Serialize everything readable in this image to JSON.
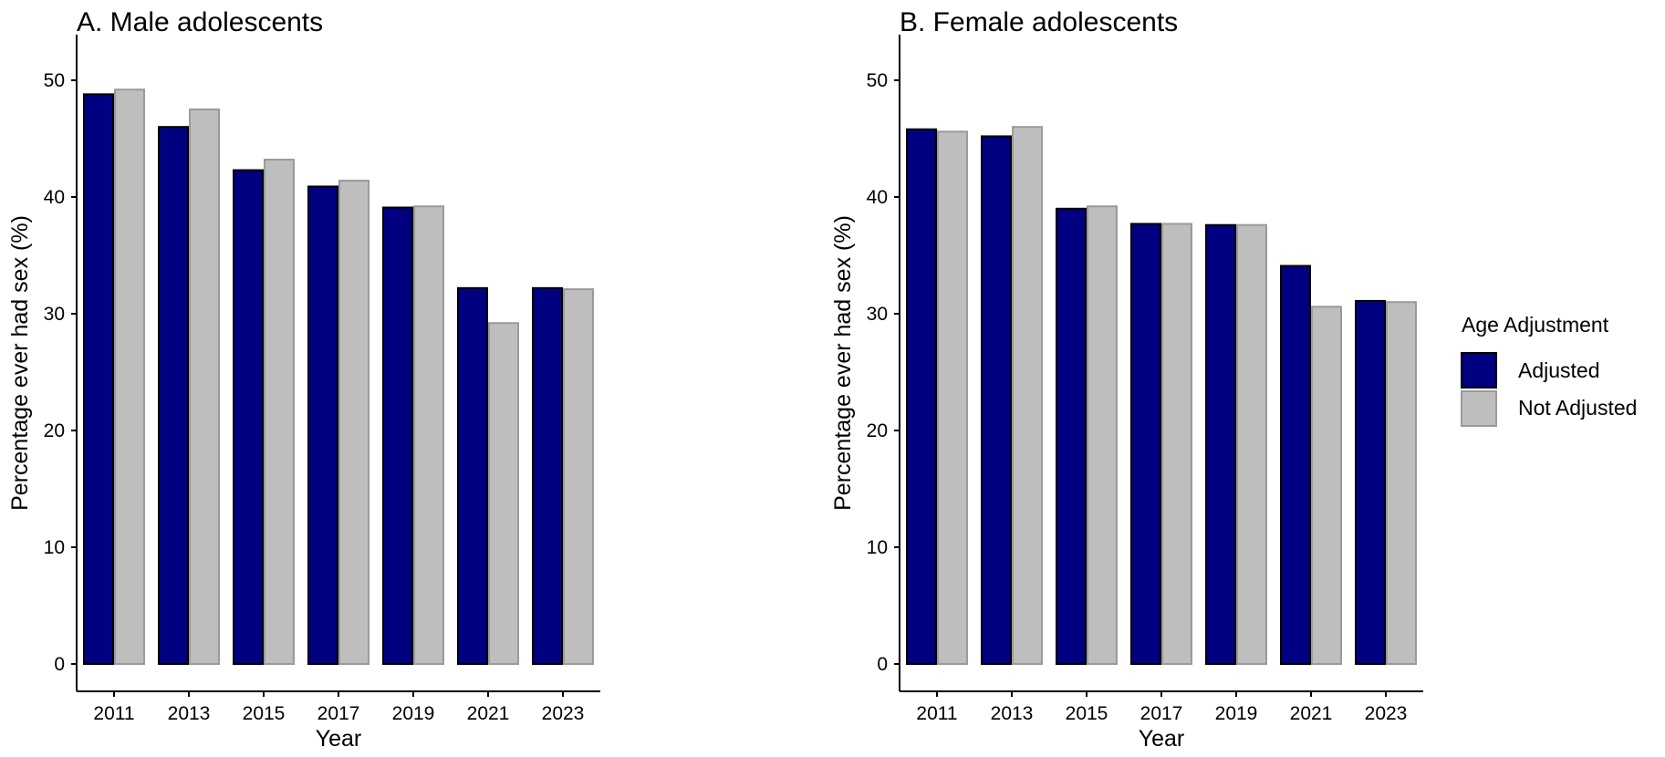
{
  "chart_data": [
    {
      "type": "bar",
      "title": "A. Male adolescents",
      "xlabel": "Year",
      "ylabel": "Percentage ever had sex (%)",
      "categories": [
        "2011",
        "2013",
        "2015",
        "2017",
        "2019",
        "2021",
        "2023"
      ],
      "ylim": [
        0,
        52
      ],
      "yticks": [
        0,
        10,
        20,
        30,
        40,
        50
      ],
      "series": [
        {
          "name": "Adjusted",
          "values": [
            48.8,
            46.0,
            42.3,
            40.9,
            39.1,
            32.2,
            32.2
          ]
        },
        {
          "name": "Not Adjusted",
          "values": [
            49.2,
            47.5,
            43.2,
            41.4,
            39.2,
            29.2,
            32.1
          ]
        }
      ]
    },
    {
      "type": "bar",
      "title": "B. Female adolescents",
      "xlabel": "Year",
      "ylabel": "Percentage ever had sex (%)",
      "categories": [
        "2011",
        "2013",
        "2015",
        "2017",
        "2019",
        "2021",
        "2023"
      ],
      "ylim": [
        0,
        52
      ],
      "yticks": [
        0,
        10,
        20,
        30,
        40,
        50
      ],
      "series": [
        {
          "name": "Adjusted",
          "values": [
            45.8,
            45.2,
            39.0,
            37.7,
            37.6,
            34.1,
            31.1
          ]
        },
        {
          "name": "Not Adjusted",
          "values": [
            45.6,
            46.0,
            39.2,
            37.7,
            37.6,
            30.6,
            31.0
          ]
        }
      ]
    }
  ],
  "legend": {
    "title": "Age Adjustment",
    "items": [
      {
        "label": "Adjusted",
        "color": "#000080"
      },
      {
        "label": "Not Adjusted",
        "color": "#bebebe"
      }
    ]
  },
  "colors": {
    "Adjusted": "#000080",
    "Not Adjusted": "#bebebe",
    "Adjusted_outline": "#000000",
    "Not Adjusted_outline": "#9a9a9a"
  }
}
